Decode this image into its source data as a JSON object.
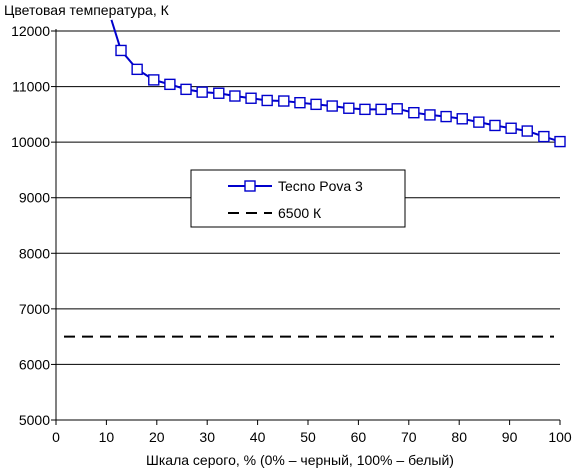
{
  "chart_data": {
    "type": "line",
    "title": "",
    "ylabel": "Цветовая температура, К",
    "xlabel": "Шкала серого, % (0% – черный, 100% – белый)",
    "xlim": [
      0,
      100
    ],
    "ylim": [
      5000,
      12000
    ],
    "xticks": [
      "0",
      "10",
      "20",
      "30",
      "40",
      "50",
      "60",
      "70",
      "80",
      "90",
      "100"
    ],
    "yticks": [
      "5000",
      "6000",
      "7000",
      "8000",
      "9000",
      "10000",
      "11000",
      "12000"
    ],
    "grid": "horizontal",
    "legend_position": "center",
    "series": [
      {
        "name": "Tecno Pova 3",
        "color": "#0000cc",
        "marker": "square-open",
        "x": [
          12.9,
          16.1,
          19.4,
          22.6,
          25.8,
          29.0,
          32.3,
          35.5,
          38.7,
          41.9,
          45.2,
          48.4,
          51.6,
          54.8,
          58.1,
          61.3,
          64.5,
          67.7,
          71.0,
          74.2,
          77.4,
          80.6,
          83.9,
          87.1,
          90.3,
          93.5,
          96.8,
          100.0
        ],
        "y": [
          11650,
          11310,
          11120,
          11040,
          10950,
          10900,
          10880,
          10830,
          10790,
          10750,
          10740,
          10710,
          10680,
          10650,
          10610,
          10590,
          10590,
          10600,
          10530,
          10490,
          10460,
          10420,
          10360,
          10300,
          10250,
          10200,
          10100,
          10010
        ],
        "lead_in": {
          "x": [
            11.0,
            12.9
          ],
          "y": [
            12200,
            11650
          ]
        }
      },
      {
        "name": "6500 К",
        "color": "#000000",
        "style": "dashed",
        "x": [
          0,
          100
        ],
        "y": [
          6500,
          6500
        ]
      }
    ]
  }
}
